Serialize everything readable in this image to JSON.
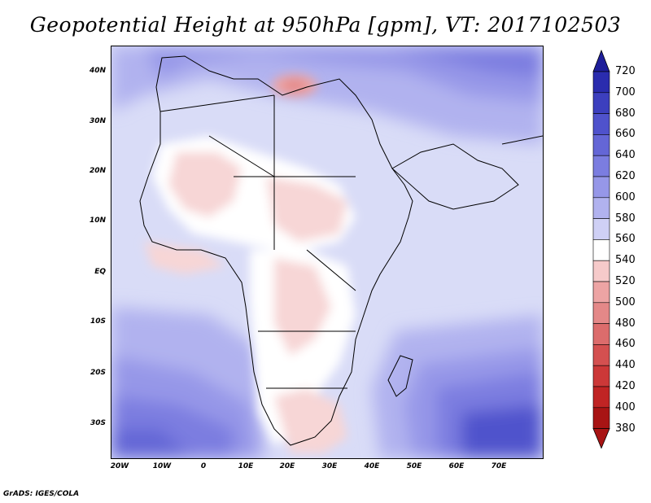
{
  "title": "Geopotential Height at 950hPa [gpm], VT: 2017102503",
  "credit": "GrADS: IGES/COLA",
  "latitude_labels": [
    "40N",
    "30N",
    "20N",
    "10N",
    "EQ",
    "10S",
    "20S",
    "30S"
  ],
  "longitude_labels": [
    "20W",
    "10W",
    "0",
    "10E",
    "20E",
    "30E",
    "40E",
    "50E",
    "60E",
    "70E"
  ],
  "colorbar": {
    "levels": [
      "720",
      "700",
      "680",
      "660",
      "640",
      "620",
      "600",
      "580",
      "560",
      "540",
      "520",
      "500",
      "480",
      "460",
      "440",
      "420",
      "400",
      "380"
    ],
    "colors": [
      "#1e1e9a",
      "#2a2cae",
      "#3c3fbe",
      "#4f52cc",
      "#6466d6",
      "#7b7de0",
      "#9697e8",
      "#b1b2ef",
      "#cfd0f5",
      "#ffffff",
      "#f6caca",
      "#eda4a4",
      "#e48888",
      "#dc6c6c",
      "#d45050",
      "#cc3838",
      "#c02424",
      "#a81414"
    ]
  },
  "colors": {
    "ocean_base": "#d9dcf7",
    "land_neutral": "#ffffff",
    "land_low": "#f7d6d6",
    "high_mid": "#b1b2ef",
    "high_strong": "#6466d6",
    "high_max": "#3c3fbe"
  }
}
